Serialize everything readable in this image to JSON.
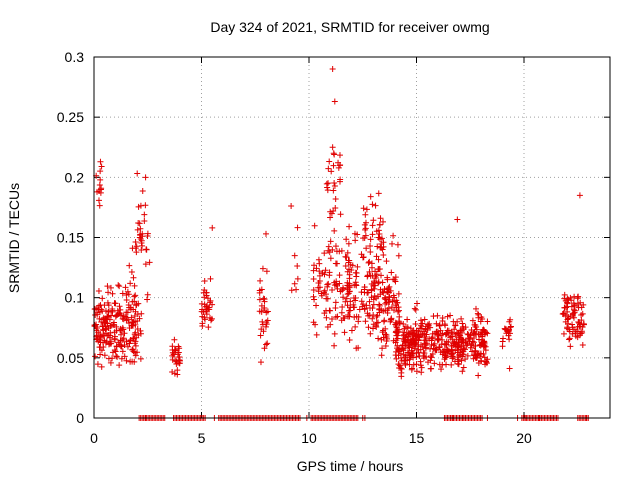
{
  "chart_data": {
    "type": "scatter",
    "title": "Day 324 of 2021, SRMTID for receiver owmg",
    "xlabel": "GPS time / hours",
    "ylabel": "SRMTID / TECUs",
    "xlim": [
      0,
      24
    ],
    "ylim": [
      0,
      0.3
    ],
    "xticks": [
      0,
      5,
      10,
      15,
      20
    ],
    "xtick_labels": [
      "0",
      "5",
      "10",
      "15",
      "20"
    ],
    "yticks": [
      0,
      0.05,
      0.1,
      0.15,
      0.2,
      0.25,
      0.3
    ],
    "ytick_labels": [
      "0",
      "0.05",
      "0.1",
      "0.15",
      "0.2",
      "0.25",
      "0.3"
    ],
    "grid": true,
    "marker": "+",
    "series_color": "#e00000",
    "clusters": [
      {
        "x": [
          0.0,
          2.2
        ],
        "y_center": 0.075,
        "y_spread": 0.035,
        "count": 220
      },
      {
        "x": [
          0.1,
          0.4
        ],
        "y_center": 0.19,
        "y_spread": 0.02,
        "count": 12
      },
      {
        "x": [
          1.6,
          2.0
        ],
        "y_center": 0.12,
        "y_spread": 0.03,
        "count": 14
      },
      {
        "x": [
          2.0,
          2.6
        ],
        "y_center": 0.15,
        "y_spread": 0.05,
        "count": 30
      },
      {
        "x": [
          3.6,
          4.0
        ],
        "y_center": 0.05,
        "y_spread": 0.018,
        "count": 30
      },
      {
        "x": [
          5.0,
          5.5
        ],
        "y_center": 0.095,
        "y_spread": 0.025,
        "count": 35
      },
      {
        "x": [
          7.7,
          8.1
        ],
        "y_center": 0.085,
        "y_spread": 0.04,
        "count": 30
      },
      {
        "x": [
          9.1,
          9.5
        ],
        "y_center": 0.13,
        "y_spread": 0.04,
        "count": 8
      },
      {
        "x": [
          10.2,
          11.9
        ],
        "y_center": 0.11,
        "y_spread": 0.05,
        "count": 110
      },
      {
        "x": [
          10.8,
          11.5
        ],
        "y_center": 0.19,
        "y_spread": 0.04,
        "count": 25
      },
      {
        "x": [
          11.8,
          14.2
        ],
        "y_center": 0.1,
        "y_spread": 0.045,
        "count": 200
      },
      {
        "x": [
          12.5,
          13.5
        ],
        "y_center": 0.155,
        "y_spread": 0.03,
        "count": 40
      },
      {
        "x": [
          14.0,
          18.3
        ],
        "y_center": 0.062,
        "y_spread": 0.025,
        "count": 460
      },
      {
        "x": [
          19.0,
          19.4
        ],
        "y_center": 0.07,
        "y_spread": 0.025,
        "count": 20
      },
      {
        "x": [
          21.8,
          22.8
        ],
        "y_center": 0.085,
        "y_spread": 0.025,
        "count": 80
      }
    ],
    "outliers": [
      {
        "x": 11.1,
        "y": 0.29
      },
      {
        "x": 11.2,
        "y": 0.263
      },
      {
        "x": 11.1,
        "y": 0.225
      },
      {
        "x": 11.15,
        "y": 0.22
      },
      {
        "x": 16.9,
        "y": 0.165
      },
      {
        "x": 22.6,
        "y": 0.185
      },
      {
        "x": 2.4,
        "y": 0.2
      },
      {
        "x": 0.3,
        "y": 0.213
      },
      {
        "x": 5.5,
        "y": 0.158
      },
      {
        "x": 8.0,
        "y": 0.153
      }
    ],
    "zero_segments": [
      [
        2.1,
        3.3
      ],
      [
        3.7,
        5.2
      ],
      [
        5.8,
        9.6
      ],
      [
        10.1,
        12.3
      ],
      [
        16.3,
        18.1
      ],
      [
        19.9,
        21.6
      ],
      [
        22.5,
        23.0
      ]
    ],
    "zero_points_hours": [
      2.4,
      5.6,
      9.9,
      12.5,
      12.6,
      16.7,
      17.2,
      18.3,
      19.7,
      20.1,
      20.7,
      21.3,
      22.9
    ]
  }
}
